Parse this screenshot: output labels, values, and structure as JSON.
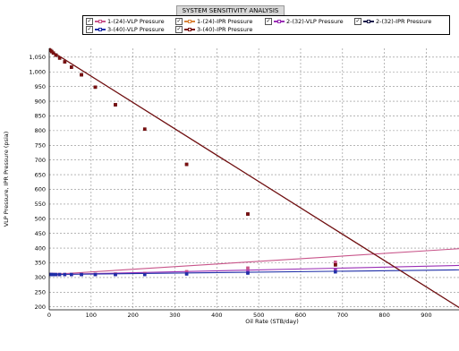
{
  "chart_data": {
    "type": "line",
    "title": "SYSTEM SENSITIVITY ANALYSIS",
    "xlabel": "Oil Rate  (STB/day)",
    "ylabel": "VLP Pressure, IPR Pressure  (psia)",
    "xlim": [
      0,
      978
    ],
    "ylim": [
      190,
      1080
    ],
    "x_ticks": [
      0,
      100,
      200,
      300,
      400,
      500,
      600,
      700,
      800,
      900
    ],
    "y_ticks": [
      200,
      250,
      300,
      350,
      400,
      450,
      500,
      550,
      600,
      650,
      700,
      750,
      800,
      850,
      900,
      950,
      1000,
      1050
    ],
    "y_tick_labels": [
      "200",
      "250",
      "300",
      "350",
      "400",
      "450",
      "500",
      "550",
      "600",
      "650",
      "700",
      "750",
      "800",
      "850",
      "900",
      "950",
      "1,000",
      "1,050"
    ],
    "grid": true,
    "legend_position": "top-center",
    "series": [
      {
        "name": "1-(24)-VLP Pressure",
        "color": "#c8558a",
        "marker": "square",
        "x": [
          0,
          3,
          6,
          10,
          16,
          25,
          37,
          53,
          77,
          110,
          158,
          228,
          328,
          474,
          683
        ],
        "y": [
          310,
          310,
          310,
          310,
          310,
          310,
          310,
          310,
          310,
          311,
          312,
          314,
          320,
          332,
          352
        ],
        "line_x": [
          0,
          978
        ],
        "line_y": [
          310,
          398
        ]
      },
      {
        "name": "1-(24)-IPR Pressure",
        "color": "#d9843a",
        "marker": "square",
        "x": [
          0,
          3,
          6,
          10,
          16,
          25,
          37,
          53,
          77,
          110,
          158,
          228,
          328,
          474,
          683
        ],
        "y": [
          1075,
          1073,
          1069,
          1064,
          1057,
          1047,
          1034,
          1016,
          990,
          948,
          888,
          805,
          685,
          516,
          343
        ],
        "line_x": [
          0,
          978
        ],
        "line_y": [
          1075,
          198
        ]
      },
      {
        "name": "2-(32)-VLP Pressure",
        "color": "#9a2fb5",
        "marker": "square",
        "x": [
          0,
          3,
          6,
          10,
          16,
          25,
          37,
          53,
          77,
          110,
          158,
          228,
          328,
          474,
          683
        ],
        "y": [
          310,
          310,
          310,
          310,
          310,
          310,
          310,
          310,
          310,
          310,
          310,
          311,
          314,
          318,
          325
        ],
        "line_x": [
          0,
          978
        ],
        "line_y": [
          310,
          341
        ]
      },
      {
        "name": "2-(32)-IPR Pressure",
        "color": "#1a1a4a",
        "marker": "square",
        "x": [
          0,
          3,
          6,
          10,
          16,
          25,
          37,
          53,
          77,
          110,
          158,
          228,
          328,
          474,
          683
        ],
        "y": [
          1075,
          1073,
          1069,
          1064,
          1057,
          1047,
          1034,
          1016,
          990,
          948,
          888,
          805,
          685,
          516,
          343
        ],
        "line_x": [
          0,
          978
        ],
        "line_y": [
          1075,
          198
        ]
      },
      {
        "name": "3-(40)-VLP Pressure",
        "color": "#1f2fa8",
        "marker": "square",
        "x": [
          0,
          3,
          6,
          10,
          16,
          25,
          37,
          53,
          77,
          110,
          158,
          228,
          328,
          474,
          683
        ],
        "y": [
          310,
          310,
          310,
          310,
          310,
          310,
          310,
          310,
          310,
          310,
          310,
          310,
          312,
          315,
          319
        ],
        "line_x": [
          0,
          978
        ],
        "line_y": [
          310,
          326
        ]
      },
      {
        "name": "3-(40)-IPR Pressure",
        "color": "#7a1010",
        "marker": "square",
        "x": [
          0,
          3,
          6,
          10,
          16,
          25,
          37,
          53,
          77,
          110,
          158,
          228,
          328,
          474,
          683
        ],
        "y": [
          1075,
          1073,
          1069,
          1064,
          1057,
          1047,
          1034,
          1016,
          990,
          948,
          888,
          805,
          685,
          516,
          343
        ],
        "line_x": [
          0,
          978
        ],
        "line_y": [
          1075,
          198
        ]
      }
    ]
  },
  "legend": {
    "check_mark": "✓",
    "items": [
      {
        "label": "1-(24)-VLP Pressure",
        "color": "#c8558a"
      },
      {
        "label": "1-(24)-IPR Pressure",
        "color": "#d9843a"
      },
      {
        "label": "2-(32)-VLP Pressure",
        "color": "#9a2fb5"
      },
      {
        "label": "2-(32)-IPR Pressure",
        "color": "#1a1a4a"
      },
      {
        "label": "3-(40)-VLP Pressure",
        "color": "#1f2fa8"
      },
      {
        "label": "3-(40)-IPR Pressure",
        "color": "#7a1010"
      }
    ]
  }
}
